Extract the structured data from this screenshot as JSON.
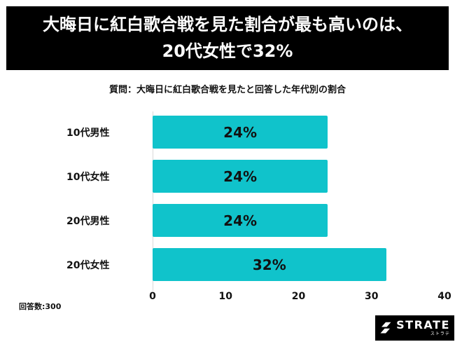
{
  "header": {
    "title_line1": "大晦日に紅白歌合戦を見た割合が最も高いのは、",
    "title_line2": "20代女性で32%"
  },
  "subtitle": "質問：大晦日に紅白歌合戦を見たと回答した年代別の割合",
  "chart_data": {
    "type": "bar",
    "orientation": "horizontal",
    "title": "質問：大晦日に紅白歌合戦を見たと回答した年代別の割合",
    "categories": [
      "10代男性",
      "10代女性",
      "20代男性",
      "20代女性"
    ],
    "values": [
      24,
      24,
      24,
      32
    ],
    "value_labels": [
      "24%",
      "24%",
      "24%",
      "32%"
    ],
    "xlabel": "",
    "ylabel": "",
    "xlim": [
      0,
      40
    ],
    "xticks": [
      0,
      10,
      20,
      30,
      40
    ],
    "grid": false,
    "legend": false,
    "bar_color": "#10C3CB"
  },
  "footer": {
    "respondents": "回答数:300"
  },
  "logo": {
    "brand": "STRATE",
    "sub": "ストラテ"
  }
}
